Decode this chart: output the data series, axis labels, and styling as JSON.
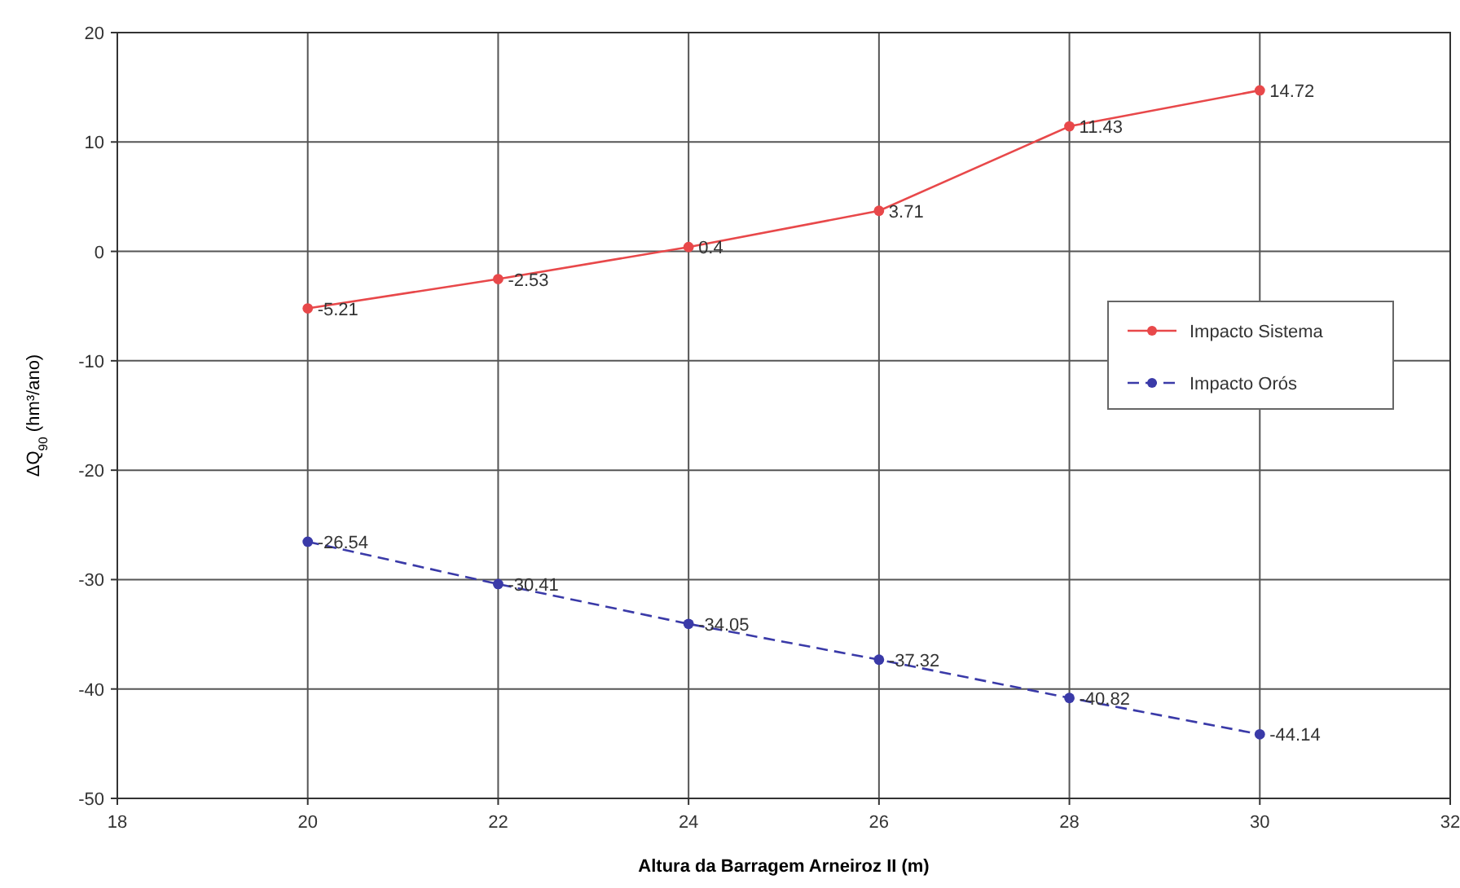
{
  "chart_data": {
    "type": "line",
    "xlabel": "Altura da Barragem Arneiroz II (m)",
    "ylabel": "ΔQ$_{90}$ (hm³/ano)",
    "x": [
      20,
      22,
      24,
      26,
      28,
      30
    ],
    "series": [
      {
        "name": "Impacto Sistema",
        "color": "#e8484a",
        "values": [
          -5.21,
          -2.53,
          0.4,
          3.71,
          11.43,
          14.72
        ],
        "line_style": "solid"
      },
      {
        "name": "Impacto Orós",
        "color": "#3a3aa8",
        "values": [
          -26.54,
          -30.41,
          -34.05,
          -37.32,
          -40.82,
          -44.14
        ],
        "line_style": "dashed"
      }
    ],
    "xlim": [
      18,
      32
    ],
    "xticks": [
      18,
      20,
      22,
      24,
      26,
      28,
      30,
      32
    ],
    "ylim": [
      -50,
      20
    ],
    "yticks": [
      -50,
      -40,
      -30,
      -20,
      -10,
      0,
      10,
      20
    ],
    "grid": true,
    "legend": "right",
    "marker": "circle",
    "data_labels": true
  }
}
